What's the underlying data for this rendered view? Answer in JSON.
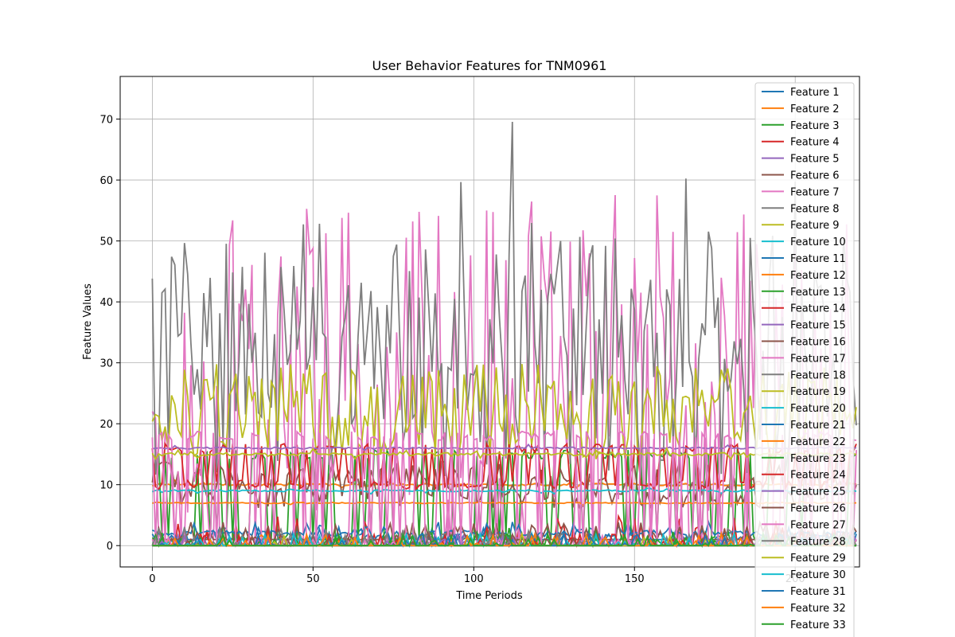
{
  "chart_data": {
    "type": "line",
    "title": "User Behavior Features for TNM0961",
    "xlabel": "Time Periods",
    "ylabel": "Feature Values",
    "xlim": [
      -10,
      220
    ],
    "ylim": [
      -3.5,
      77
    ],
    "xticks": [
      0,
      50,
      100,
      150,
      200
    ],
    "yticks": [
      0,
      10,
      20,
      30,
      40,
      50,
      60,
      70
    ],
    "grid": true,
    "legend_placement": "upper-right",
    "n_points": 220,
    "series": [
      {
        "name": "Feature 1",
        "color": "#1f77b4",
        "kind": "spiky",
        "base": 1,
        "spread": 2,
        "period": 3,
        "freq": 0.3
      },
      {
        "name": "Feature 2",
        "color": "#ff7f0e",
        "kind": "flat",
        "base": 10,
        "spread": 0.4,
        "period": 5,
        "freq": 0.1
      },
      {
        "name": "Feature 3",
        "color": "#2ca02c",
        "kind": "square",
        "base": 1,
        "spread": 14,
        "period": 4,
        "freq": 0.5
      },
      {
        "name": "Feature 4",
        "color": "#d62728",
        "kind": "spiky",
        "base": 0,
        "spread": 5,
        "period": 2,
        "freq": 0.25
      },
      {
        "name": "Feature 5",
        "color": "#9467bd",
        "kind": "spiky",
        "base": 0,
        "spread": 2,
        "period": 3,
        "freq": 0.2
      },
      {
        "name": "Feature 6",
        "color": "#8c564b",
        "kind": "noisy",
        "base": 10,
        "spread": 4,
        "period": 3,
        "freq": 0.5
      },
      {
        "name": "Feature 7",
        "color": "#e377c2",
        "kind": "pinkspike",
        "base": 15,
        "spread": 43,
        "period": 2,
        "freq": 0.5
      },
      {
        "name": "Feature 8",
        "color": "#7f7f7f",
        "kind": "grayspike",
        "base": 30,
        "spread": 38,
        "period": 2,
        "freq": 0.5
      },
      {
        "name": "Feature 9",
        "color": "#bcbd22",
        "kind": "noisy",
        "base": 22,
        "spread": 8,
        "period": 2,
        "freq": 0.5
      },
      {
        "name": "Feature 10",
        "color": "#17becf",
        "kind": "flat",
        "base": 9,
        "spread": 0.3,
        "period": 5,
        "freq": 0.1
      },
      {
        "name": "Feature 11",
        "color": "#1f77b4",
        "kind": "flat",
        "base": 2,
        "spread": 1,
        "period": 4,
        "freq": 0.2
      },
      {
        "name": "Feature 12",
        "color": "#ff7f0e",
        "kind": "flat",
        "base": 7,
        "spread": 0.2,
        "period": 5,
        "freq": 0.05
      },
      {
        "name": "Feature 13",
        "color": "#2ca02c",
        "kind": "spiky",
        "base": 0,
        "spread": 3,
        "period": 3,
        "freq": 0.2
      },
      {
        "name": "Feature 14",
        "color": "#d62728",
        "kind": "square",
        "base": 10,
        "spread": 6,
        "period": 3,
        "freq": 0.4
      },
      {
        "name": "Feature 15",
        "color": "#9467bd",
        "kind": "flat",
        "base": 16,
        "spread": 0.3,
        "period": 5,
        "freq": 0.05
      },
      {
        "name": "Feature 16",
        "color": "#8c564b",
        "kind": "spiky",
        "base": 1,
        "spread": 3,
        "period": 3,
        "freq": 0.3
      },
      {
        "name": "Feature 17",
        "color": "#e377c2",
        "kind": "square",
        "base": 0,
        "spread": 18,
        "period": 3,
        "freq": 0.4
      },
      {
        "name": "Feature 18",
        "color": "#7f7f7f",
        "kind": "spiky",
        "base": 0,
        "spread": 3,
        "period": 3,
        "freq": 0.2
      },
      {
        "name": "Feature 19",
        "color": "#bcbd22",
        "kind": "flat",
        "base": 15,
        "spread": 0.5,
        "period": 5,
        "freq": 0.1
      },
      {
        "name": "Feature 20",
        "color": "#17becf",
        "kind": "spiky",
        "base": 0,
        "spread": 2,
        "period": 3,
        "freq": 0.15
      },
      {
        "name": "Feature 21",
        "color": "#1f77b4",
        "kind": "spiky",
        "base": 0,
        "spread": 2,
        "period": 3,
        "freq": 0.15
      },
      {
        "name": "Feature 22",
        "color": "#ff7f0e",
        "kind": "spiky",
        "base": 0,
        "spread": 2,
        "period": 3,
        "freq": 0.15
      },
      {
        "name": "Feature 23",
        "color": "#2ca02c",
        "kind": "spiky",
        "base": 0,
        "spread": 2,
        "period": 3,
        "freq": 0.15
      },
      {
        "name": "Feature 24",
        "color": "#d62728",
        "kind": "spiky",
        "base": 0,
        "spread": 2,
        "period": 3,
        "freq": 0.15
      },
      {
        "name": "Feature 25",
        "color": "#9467bd",
        "kind": "spiky",
        "base": 0,
        "spread": 2,
        "period": 3,
        "freq": 0.15
      },
      {
        "name": "Feature 26",
        "color": "#8c564b",
        "kind": "spiky",
        "base": 0,
        "spread": 2,
        "period": 3,
        "freq": 0.15
      },
      {
        "name": "Feature 27",
        "color": "#e377c2",
        "kind": "spiky",
        "base": 0,
        "spread": 2,
        "period": 3,
        "freq": 0.15
      },
      {
        "name": "Feature 28",
        "color": "#7f7f7f",
        "kind": "spiky",
        "base": 0,
        "spread": 2,
        "period": 3,
        "freq": 0.15
      },
      {
        "name": "Feature 29",
        "color": "#bcbd22",
        "kind": "spiky",
        "base": 0,
        "spread": 2,
        "period": 3,
        "freq": 0.15
      },
      {
        "name": "Feature 30",
        "color": "#17becf",
        "kind": "spiky",
        "base": 0,
        "spread": 2,
        "period": 3,
        "freq": 0.15
      },
      {
        "name": "Feature 31",
        "color": "#1f77b4",
        "kind": "spiky",
        "base": 0,
        "spread": 2,
        "period": 3,
        "freq": 0.15
      },
      {
        "name": "Feature 32",
        "color": "#ff7f0e",
        "kind": "spiky",
        "base": 0,
        "spread": 2,
        "period": 3,
        "freq": 0.15
      },
      {
        "name": "Feature 33",
        "color": "#2ca02c",
        "kind": "spiky",
        "base": 0,
        "spread": 2,
        "period": 3,
        "freq": 0.15
      }
    ]
  }
}
